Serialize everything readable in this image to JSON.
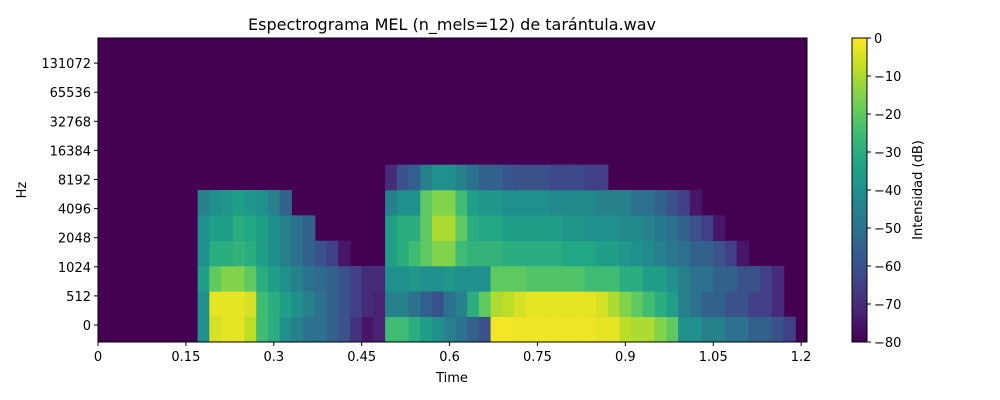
{
  "chart_data": {
    "type": "heatmap",
    "title": "Espectrograma MEL (n_mels=12) de tarántula.wav",
    "xlabel": "Time",
    "ylabel": "Hz",
    "xlim": [
      0,
      1.21
    ],
    "x_ticks": [
      "0",
      "0.15",
      "0.3",
      "0.45",
      "0.6",
      "0.75",
      "0.9",
      "1.05",
      "1.2"
    ],
    "x_tick_values": [
      0,
      0.15,
      0.3,
      0.45,
      0.6,
      0.75,
      0.9,
      1.05,
      1.2
    ],
    "y_ticks": [
      "0",
      "512",
      "1024",
      "2048",
      "4096",
      "8192",
      "16384",
      "32768",
      "65536",
      "131072"
    ],
    "n_mels": 12,
    "colormap": "viridis",
    "colorbar": {
      "label": "Intensidad (dB)",
      "range": [
        -80,
        0
      ],
      "ticks": [
        "0",
        "−10",
        "−20",
        "−30",
        "−40",
        "−50",
        "−60",
        "−70",
        "−80"
      ],
      "tick_values": [
        0,
        -10,
        -20,
        -30,
        -40,
        -50,
        -60,
        -70,
        -80
      ]
    },
    "time_frames": [
      0.0,
      0.03,
      0.06,
      0.09,
      0.12,
      0.15,
      0.17,
      0.19,
      0.21,
      0.23,
      0.25,
      0.27,
      0.29,
      0.31,
      0.33,
      0.35,
      0.37,
      0.39,
      0.41,
      0.43,
      0.45,
      0.47,
      0.49,
      0.51,
      0.53,
      0.55,
      0.57,
      0.59,
      0.61,
      0.63,
      0.65,
      0.67,
      0.69,
      0.71,
      0.73,
      0.75,
      0.77,
      0.79,
      0.81,
      0.83,
      0.85,
      0.87,
      0.89,
      0.91,
      0.93,
      0.95,
      0.97,
      0.99,
      1.01,
      1.03,
      1.05,
      1.07,
      1.09,
      1.11,
      1.13,
      1.15,
      1.17,
      1.19
    ],
    "frame_ends": [
      0.03,
      0.06,
      0.09,
      0.12,
      0.15,
      0.17,
      0.19,
      0.21,
      0.23,
      0.25,
      0.27,
      0.29,
      0.31,
      0.33,
      0.35,
      0.37,
      0.39,
      0.41,
      0.43,
      0.45,
      0.47,
      0.49,
      0.51,
      0.53,
      0.55,
      0.57,
      0.59,
      0.61,
      0.63,
      0.65,
      0.67,
      0.69,
      0.71,
      0.73,
      0.75,
      0.77,
      0.79,
      0.81,
      0.83,
      0.85,
      0.87,
      0.89,
      0.91,
      0.93,
      0.95,
      0.97,
      0.99,
      1.01,
      1.03,
      1.05,
      1.07,
      1.09,
      1.11,
      1.13,
      1.15,
      1.17,
      1.19,
      1.21
    ],
    "intensity_db_bottom_to_top": [
      [
        -80,
        -80,
        -80,
        -80,
        -80,
        -80,
        -40,
        -5,
        -3,
        -3,
        -8,
        -25,
        -30,
        -40,
        -45,
        -50,
        -50,
        -55,
        -60,
        -68,
        -75,
        -72,
        -25,
        -25,
        -30,
        -35,
        -40,
        -45,
        -50,
        -55,
        -60,
        -1,
        -1,
        -2,
        -2,
        -2,
        -2,
        -2,
        -2,
        -2,
        -3,
        -3,
        -8,
        -10,
        -10,
        -15,
        -20,
        -40,
        -40,
        -45,
        -45,
        -50,
        -50,
        -55,
        -55,
        -60,
        -65,
        -80
      ],
      [
        -80,
        -80,
        -80,
        -80,
        -80,
        -80,
        -40,
        -3,
        -3,
        -3,
        -5,
        -25,
        -30,
        -35,
        -40,
        -45,
        -50,
        -55,
        -60,
        -65,
        -70,
        -72,
        -45,
        -45,
        -50,
        -55,
        -60,
        -50,
        -45,
        -30,
        -20,
        -10,
        -8,
        -5,
        -3,
        -3,
        -3,
        -3,
        -3,
        -3,
        -5,
        -10,
        -15,
        -20,
        -25,
        -30,
        -35,
        -45,
        -50,
        -55,
        -55,
        -60,
        -60,
        -65,
        -65,
        -70,
        -80,
        -80
      ],
      [
        -80,
        -80,
        -80,
        -80,
        -80,
        -80,
        -35,
        -20,
        -15,
        -15,
        -20,
        -30,
        -35,
        -40,
        -45,
        -50,
        -52,
        -55,
        -60,
        -65,
        -70,
        -70,
        -40,
        -40,
        -38,
        -40,
        -40,
        -38,
        -40,
        -40,
        -40,
        -20,
        -20,
        -20,
        -22,
        -22,
        -22,
        -22,
        -22,
        -25,
        -25,
        -25,
        -30,
        -30,
        -35,
        -35,
        -40,
        -45,
        -50,
        -50,
        -55,
        -55,
        -60,
        -60,
        -65,
        -70,
        -80,
        -80
      ],
      [
        -80,
        -80,
        -80,
        -80,
        -80,
        -80,
        -40,
        -30,
        -30,
        -28,
        -30,
        -35,
        -40,
        -45,
        -50,
        -55,
        -60,
        -65,
        -75,
        -80,
        -80,
        -80,
        -35,
        -30,
        -25,
        -20,
        -15,
        -15,
        -25,
        -28,
        -28,
        -28,
        -30,
        -30,
        -30,
        -30,
        -30,
        -32,
        -32,
        -32,
        -35,
        -35,
        -38,
        -40,
        -42,
        -45,
        -48,
        -50,
        -55,
        -55,
        -60,
        -65,
        -75,
        -80,
        -80,
        -80,
        -80,
        -80
      ],
      [
        -80,
        -80,
        -80,
        -80,
        -80,
        -80,
        -40,
        -35,
        -35,
        -30,
        -32,
        -35,
        -40,
        -45,
        -50,
        -55,
        -80,
        -80,
        -80,
        -80,
        -80,
        -80,
        -35,
        -30,
        -30,
        -20,
        -10,
        -10,
        -20,
        -30,
        -32,
        -32,
        -35,
        -35,
        -35,
        -35,
        -35,
        -38,
        -38,
        -40,
        -40,
        -40,
        -42,
        -42,
        -45,
        -48,
        -50,
        -55,
        -60,
        -65,
        -75,
        -80,
        -80,
        -80,
        -80,
        -80,
        -80,
        -80
      ],
      [
        -80,
        -80,
        -80,
        -80,
        -80,
        -80,
        -45,
        -40,
        -38,
        -35,
        -38,
        -40,
        -45,
        -55,
        -80,
        -80,
        -80,
        -80,
        -80,
        -80,
        -80,
        -80,
        -45,
        -40,
        -40,
        -20,
        -15,
        -15,
        -25,
        -35,
        -38,
        -38,
        -40,
        -40,
        -40,
        -40,
        -42,
        -42,
        -42,
        -42,
        -45,
        -45,
        -45,
        -50,
        -50,
        -55,
        -60,
        -65,
        -75,
        -80,
        -80,
        -80,
        -80,
        -80,
        -80,
        -80,
        -80,
        -80
      ],
      [
        -80,
        -80,
        -80,
        -80,
        -80,
        -80,
        -80,
        -80,
        -80,
        -80,
        -80,
        -80,
        -80,
        -80,
        -80,
        -80,
        -80,
        -80,
        -80,
        -80,
        -80,
        -80,
        -70,
        -60,
        -55,
        -45,
        -40,
        -40,
        -45,
        -50,
        -55,
        -55,
        -58,
        -60,
        -60,
        -60,
        -62,
        -62,
        -62,
        -65,
        -65,
        -80,
        -80,
        -80,
        -80,
        -80,
        -80,
        -80,
        -80,
        -80,
        -80,
        -80,
        -80,
        -80,
        -80,
        -80,
        -80,
        -80
      ],
      [
        -80,
        -80,
        -80,
        -80,
        -80,
        -80,
        -80,
        -80,
        -80,
        -80,
        -80,
        -80,
        -80,
        -80,
        -80,
        -80,
        -80,
        -80,
        -80,
        -80,
        -80,
        -80,
        -80,
        -80,
        -80,
        -80,
        -80,
        -80,
        -80,
        -80,
        -80,
        -80,
        -80,
        -80,
        -80,
        -80,
        -80,
        -80,
        -80,
        -80,
        -80,
        -80,
        -80,
        -80,
        -80,
        -80,
        -80,
        -80,
        -80,
        -80,
        -80,
        -80,
        -80,
        -80,
        -80,
        -80,
        -80,
        -80
      ],
      [
        -80,
        -80,
        -80,
        -80,
        -80,
        -80,
        -80,
        -80,
        -80,
        -80,
        -80,
        -80,
        -80,
        -80,
        -80,
        -80,
        -80,
        -80,
        -80,
        -80,
        -80,
        -80,
        -80,
        -80,
        -80,
        -80,
        -80,
        -80,
        -80,
        -80,
        -80,
        -80,
        -80,
        -80,
        -80,
        -80,
        -80,
        -80,
        -80,
        -80,
        -80,
        -80,
        -80,
        -80,
        -80,
        -80,
        -80,
        -80,
        -80,
        -80,
        -80,
        -80,
        -80,
        -80,
        -80,
        -80,
        -80,
        -80
      ],
      [
        -80,
        -80,
        -80,
        -80,
        -80,
        -80,
        -80,
        -80,
        -80,
        -80,
        -80,
        -80,
        -80,
        -80,
        -80,
        -80,
        -80,
        -80,
        -80,
        -80,
        -80,
        -80,
        -80,
        -80,
        -80,
        -80,
        -80,
        -80,
        -80,
        -80,
        -80,
        -80,
        -80,
        -80,
        -80,
        -80,
        -80,
        -80,
        -80,
        -80,
        -80,
        -80,
        -80,
        -80,
        -80,
        -80,
        -80,
        -80,
        -80,
        -80,
        -80,
        -80,
        -80,
        -80,
        -80,
        -80,
        -80,
        -80
      ],
      [
        -80,
        -80,
        -80,
        -80,
        -80,
        -80,
        -80,
        -80,
        -80,
        -80,
        -80,
        -80,
        -80,
        -80,
        -80,
        -80,
        -80,
        -80,
        -80,
        -80,
        -80,
        -80,
        -80,
        -80,
        -80,
        -80,
        -80,
        -80,
        -80,
        -80,
        -80,
        -80,
        -80,
        -80,
        -80,
        -80,
        -80,
        -80,
        -80,
        -80,
        -80,
        -80,
        -80,
        -80,
        -80,
        -80,
        -80,
        -80,
        -80,
        -80,
        -80,
        -80,
        -80,
        -80,
        -80,
        -80,
        -80,
        -80
      ],
      [
        -80,
        -80,
        -80,
        -80,
        -80,
        -80,
        -80,
        -80,
        -80,
        -80,
        -80,
        -80,
        -80,
        -80,
        -80,
        -80,
        -80,
        -80,
        -80,
        -80,
        -80,
        -80,
        -80,
        -80,
        -80,
        -80,
        -80,
        -80,
        -80,
        -80,
        -80,
        -80,
        -80,
        -80,
        -80,
        -80,
        -80,
        -80,
        -80,
        -80,
        -80,
        -80,
        -80,
        -80,
        -80,
        -80,
        -80,
        -80,
        -80,
        -80,
        -80,
        -80,
        -80,
        -80,
        -80,
        -80,
        -80,
        -80
      ]
    ]
  }
}
